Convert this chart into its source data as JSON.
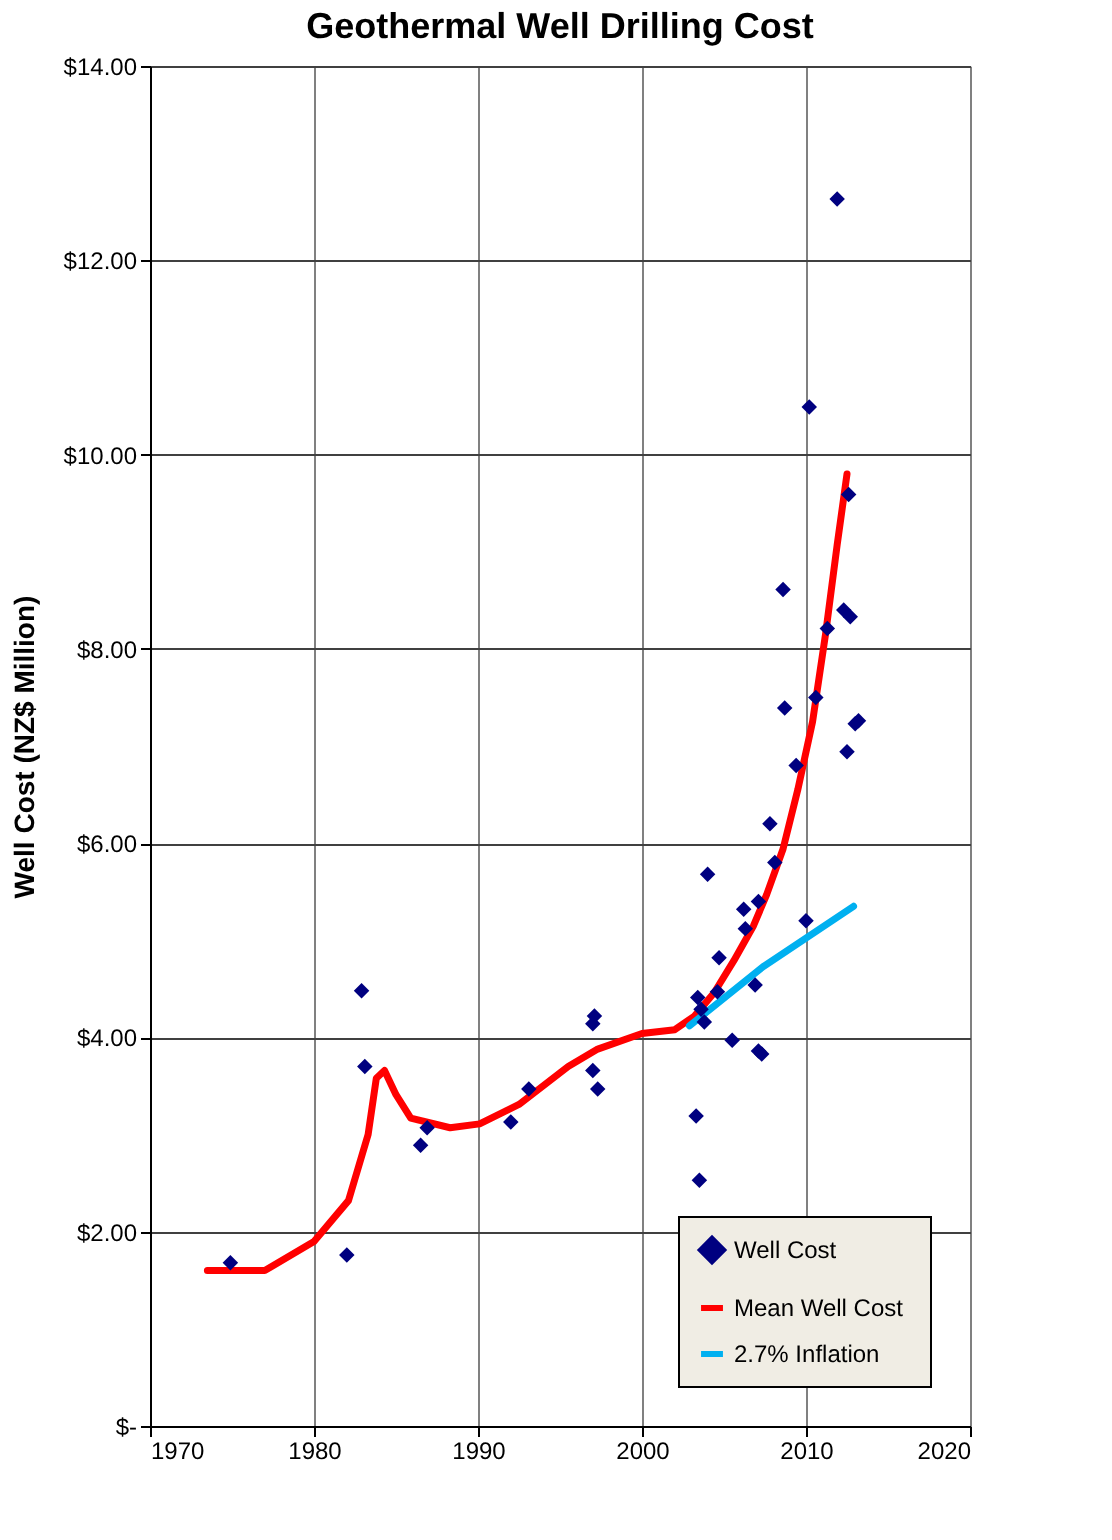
{
  "chart_data": {
    "type": "scatter",
    "title": "Geothermal Well Drilling Cost",
    "ylabel": "Well Cost (NZ$ Million)",
    "xlim": [
      1970,
      2020
    ],
    "xticks": [
      1970,
      1980,
      1990,
      2000,
      2010,
      2020
    ],
    "ylim": [
      0,
      14
    ],
    "yticks": [
      {
        "value": 0,
        "label": "$-"
      },
      {
        "value": 2,
        "label": "$2.00"
      },
      {
        "value": 4,
        "label": "$4.00"
      },
      {
        "value": 6,
        "label": "$6.00"
      },
      {
        "value": 8,
        "label": "$8.00"
      },
      {
        "value": 10,
        "label": "$10.00"
      },
      {
        "value": 12,
        "label": "$12.00"
      },
      {
        "value": 14,
        "label": "$14.00"
      }
    ],
    "grid": true,
    "legend": "bottom right",
    "series": [
      {
        "name": "Well Cost",
        "marker": "diamond",
        "color": "#000080",
        "x": [
          1974.9,
          1982.0,
          1982.9,
          1983.1,
          1986.5,
          1986.9,
          1992.0,
          1993.1,
          1997.0,
          1997.1,
          1997.0,
          1997.3,
          2004.0,
          2007.8,
          2008.1,
          2006.2,
          2007.1,
          2006.3,
          2004.7,
          2010.0,
          2006.9,
          2003.4,
          2004.6,
          2003.6,
          2003.8,
          2005.5,
          2007.3,
          2007.1,
          2003.3,
          2003.5,
          2010.2,
          2012.6,
          2008.6,
          2012.3,
          2012.7,
          2011.3,
          2008.7,
          2010.6,
          2013.2,
          2013.0,
          2012.5,
          2009.4,
          2011.9
        ],
        "values": [
          1.68,
          1.76,
          4.48,
          3.7,
          2.89,
          3.07,
          3.13,
          3.47,
          4.14,
          4.22,
          3.66,
          3.47,
          5.68,
          6.2,
          5.8,
          5.32,
          5.4,
          5.12,
          4.82,
          5.2,
          4.54,
          4.41,
          4.47,
          4.29,
          4.16,
          3.97,
          3.83,
          3.86,
          3.19,
          2.53,
          10.49,
          9.59,
          8.61,
          8.4,
          8.33,
          8.21,
          7.39,
          7.5,
          7.26,
          7.23,
          6.94,
          6.8,
          12.63
        ]
      },
      {
        "name": "Mean Well  Cost",
        "type": "line",
        "marker": "none",
        "line_style": "solid",
        "color": "#ff0000",
        "x": [
          1973.5,
          1977.0,
          1980.0,
          1982.1,
          1983.3,
          1983.8,
          1984.3,
          1985.0,
          1985.9,
          1988.3,
          1990.1,
          1992.5,
          1995.5,
          1997.3,
          2000.0,
          2002.0,
          2003.2,
          2004.4,
          2005.6,
          2006.8,
          2007.6,
          2008.6,
          2009.5,
          2010.4,
          2011.2,
          2011.9,
          2012.5
        ],
        "values": [
          1.6,
          1.6,
          1.9,
          2.32,
          3.0,
          3.58,
          3.66,
          3.41,
          3.17,
          3.07,
          3.11,
          3.31,
          3.7,
          3.88,
          4.04,
          4.08,
          4.22,
          4.46,
          4.79,
          5.15,
          5.47,
          5.94,
          6.55,
          7.25,
          8.16,
          9.07,
          9.8
        ]
      },
      {
        "name": "2.7% Inflation",
        "type": "line",
        "marker": "none",
        "line_style": "solid",
        "color": "#00b0f0",
        "x": [
          2002.9,
          2007.4,
          2012.9
        ],
        "values": [
          4.12,
          4.73,
          5.35
        ]
      }
    ]
  }
}
